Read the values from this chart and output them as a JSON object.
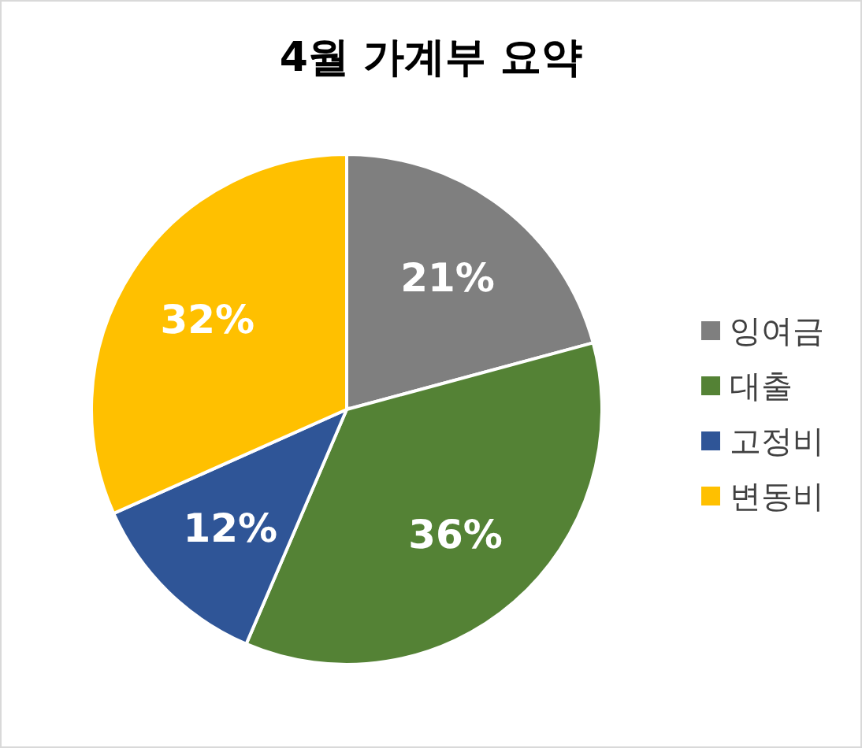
{
  "chart_data": {
    "type": "pie",
    "title": "4월 가계부 요약",
    "categories": [
      "잉여금",
      "대출",
      "고정비",
      "변동비"
    ],
    "values": [
      21,
      36,
      12,
      32
    ],
    "value_labels": [
      "21%",
      "36%",
      "12%",
      "32%"
    ],
    "colors": [
      "#7f7f7f",
      "#548235",
      "#2f5597",
      "#ffc000"
    ],
    "legend": "right"
  }
}
